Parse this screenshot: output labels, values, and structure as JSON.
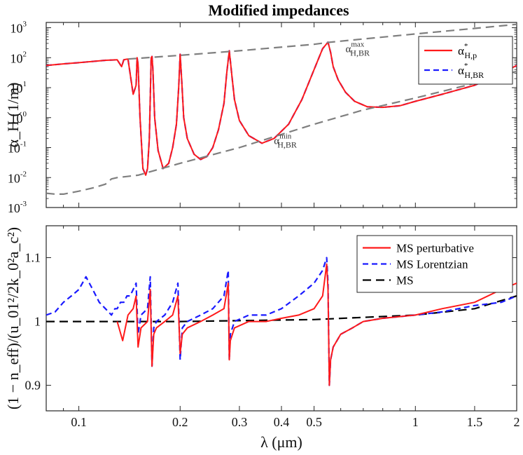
{
  "chart_data": [
    {
      "type": "line",
      "title": "Modified impedances",
      "ylabel": "α_H (1/m)",
      "xscale": "log",
      "yscale": "log",
      "xlim": [
        0.08,
        2
      ],
      "ylim": [
        0.001,
        1500
      ],
      "x_ticks": [],
      "y_ticks": [
        {
          "value": 0.001,
          "base": "10",
          "exp": "-3"
        },
        {
          "value": 0.01,
          "base": "10",
          "exp": "-2"
        },
        {
          "value": 0.1,
          "base": "10",
          "exp": "-1"
        },
        {
          "value": 1,
          "base": "10",
          "exp": "0"
        },
        {
          "value": 10,
          "base": "10",
          "exp": "1"
        },
        {
          "value": 100,
          "base": "10",
          "exp": "2"
        },
        {
          "value": 1000,
          "base": "10",
          "exp": "3"
        }
      ],
      "legend": {
        "position": "top-right",
        "entries": [
          {
            "main": "α",
            "sup": "*",
            "sub": "H,p"
          },
          {
            "main": "α",
            "sup": "*",
            "sub": "H,BR"
          }
        ]
      },
      "annotations": [
        {
          "main": "α",
          "sup": "max",
          "sub": "H,BR",
          "at": [
            0.62,
            150
          ]
        },
        {
          "main": "α",
          "sup": "min",
          "sub": "H,BR",
          "at": [
            0.38,
            0.13
          ]
        }
      ],
      "background_lines": {
        "smooth_x": [
          0.08,
          0.33
        ],
        "smooth_y": [
          100,
          150
        ]
      },
      "series": [
        {
          "name": "α*_H,BR (Lorentzian)",
          "color": "#1a1aff",
          "dash": "8,5",
          "width": 2.2,
          "x": [
            0.08,
            0.09,
            0.1,
            0.11,
            0.12,
            0.13,
            0.134,
            0.136,
            0.138,
            0.14,
            0.145,
            0.148,
            0.149,
            0.15,
            0.152,
            0.155,
            0.158,
            0.16,
            0.162,
            0.164,
            0.165,
            0.166,
            0.168,
            0.172,
            0.178,
            0.185,
            0.19,
            0.195,
            0.198,
            0.2,
            0.202,
            0.205,
            0.21,
            0.22,
            0.23,
            0.24,
            0.25,
            0.26,
            0.27,
            0.275,
            0.28,
            0.285,
            0.29,
            0.3,
            0.32,
            0.35,
            0.38,
            0.42,
            0.46,
            0.5,
            0.53,
            0.55,
            0.56,
            0.57,
            0.59,
            0.62,
            0.66,
            0.72,
            0.8,
            0.9,
            1.0,
            1.2,
            1.5,
            1.8,
            2.0
          ],
          "y": [
            55,
            62,
            68,
            75,
            82,
            85,
            50,
            85,
            88,
            90,
            6,
            12,
            100,
            60,
            1,
            0.02,
            0.012,
            0.02,
            0.2,
            100,
            110,
            40,
            1,
            0.08,
            0.02,
            0.03,
            0.1,
            0.6,
            10,
            130,
            20,
            1,
            0.2,
            0.06,
            0.04,
            0.05,
            0.1,
            0.4,
            3,
            30,
            170,
            25,
            4,
            0.8,
            0.25,
            0.14,
            0.2,
            0.6,
            4,
            40,
            200,
            330,
            150,
            50,
            18,
            7,
            3.5,
            2.3,
            2.2,
            2.5,
            3.5,
            6,
            12,
            30,
            55
          ]
        },
        {
          "name": "α*_H,p (perturbative)",
          "color": "#ff1a1a",
          "dash": "0",
          "width": 2,
          "x": [
            0.08,
            0.09,
            0.1,
            0.11,
            0.12,
            0.13,
            0.134,
            0.136,
            0.138,
            0.14,
            0.145,
            0.148,
            0.149,
            0.15,
            0.152,
            0.155,
            0.158,
            0.16,
            0.162,
            0.164,
            0.165,
            0.166,
            0.168,
            0.172,
            0.178,
            0.185,
            0.19,
            0.195,
            0.198,
            0.2,
            0.202,
            0.205,
            0.21,
            0.22,
            0.23,
            0.24,
            0.25,
            0.26,
            0.27,
            0.275,
            0.28,
            0.285,
            0.29,
            0.3,
            0.32,
            0.35,
            0.38,
            0.42,
            0.46,
            0.5,
            0.53,
            0.55,
            0.56,
            0.57,
            0.59,
            0.62,
            0.66,
            0.72,
            0.8,
            0.9,
            1.0,
            1.2,
            1.5,
            1.8,
            2.0
          ],
          "y": [
            55,
            62,
            68,
            75,
            82,
            85,
            50,
            85,
            88,
            90,
            6,
            12,
            100,
            60,
            1,
            0.02,
            0.012,
            0.02,
            0.2,
            100,
            110,
            40,
            1,
            0.08,
            0.02,
            0.03,
            0.1,
            0.6,
            10,
            130,
            20,
            1,
            0.2,
            0.06,
            0.04,
            0.05,
            0.1,
            0.4,
            3,
            30,
            170,
            25,
            4,
            0.8,
            0.25,
            0.14,
            0.2,
            0.6,
            4,
            40,
            200,
            330,
            150,
            50,
            18,
            7,
            3.5,
            2.3,
            2.2,
            2.5,
            3.5,
            6,
            12,
            30,
            55
          ]
        },
        {
          "name": "α_H,BR max",
          "color": "#7f7f7f",
          "dash": "12,7",
          "width": 2.2,
          "x": [
            0.14,
            0.2,
            0.3,
            0.5,
            0.56,
            1.0,
            1.5,
            2.0
          ],
          "y": [
            90,
            120,
            170,
            280,
            330,
            620,
            950,
            1300
          ]
        },
        {
          "name": "α_H,BR min",
          "color": "#7f7f7f",
          "dash": "12,7",
          "width": 2.2,
          "x": [
            0.08,
            0.085,
            0.09,
            0.1,
            0.11,
            0.12,
            0.125,
            0.13,
            0.15,
            0.2,
            0.3,
            0.5,
            0.7,
            1.0,
            1.5,
            2.0
          ],
          "y": [
            0.003,
            0.0028,
            0.0028,
            0.0035,
            0.0045,
            0.006,
            0.009,
            0.01,
            0.012,
            0.03,
            0.1,
            0.6,
            1.8,
            4.5,
            14,
            35
          ]
        }
      ]
    },
    {
      "type": "line",
      "ylabel": "(1 − n_eff)/(u_01²/2k_0²a_c²)",
      "xlabel": "λ (μm)",
      "xscale": "log",
      "xlim": [
        0.08,
        2
      ],
      "ylim": [
        0.86,
        1.15
      ],
      "x_ticks": [
        {
          "value": 0.1,
          "label": "0.1"
        },
        {
          "value": 0.2,
          "label": "0.2"
        },
        {
          "value": 0.3,
          "label": "0.3"
        },
        {
          "value": 0.4,
          "label": "0.4"
        },
        {
          "value": 0.5,
          "label": "0.5"
        },
        {
          "value": 1,
          "label": "1"
        },
        {
          "value": 1.5,
          "label": "1.5"
        },
        {
          "value": 2,
          "label": "2"
        }
      ],
      "y_ticks": [
        {
          "value": 0.9,
          "label": "0.9"
        },
        {
          "value": 1.0,
          "label": "1"
        },
        {
          "value": 1.1,
          "label": "1.1"
        }
      ],
      "legend": {
        "position": "top-right",
        "entries": [
          "MS perturbative",
          "MS Lorentzian",
          "MS"
        ]
      },
      "series": [
        {
          "name": "MS",
          "color": "#000000",
          "dash": "12,7",
          "width": 2.2,
          "x": [
            0.08,
            0.2,
            0.5,
            1.0,
            1.5,
            2.0
          ],
          "y": [
            1.0,
            1.0,
            1.003,
            1.01,
            1.02,
            1.04
          ]
        },
        {
          "name": "MS Lorentzian",
          "color": "#1a1aff",
          "dash": "8,5",
          "width": 2.2,
          "x": [
            0.08,
            0.085,
            0.09,
            0.095,
            0.1,
            0.105,
            0.11,
            0.115,
            0.12,
            0.125,
            0.128,
            0.13,
            0.133,
            0.136,
            0.139,
            0.142,
            0.145,
            0.148,
            0.15,
            0.153,
            0.16,
            0.163,
            0.165,
            0.167,
            0.17,
            0.18,
            0.19,
            0.197,
            0.2,
            0.203,
            0.21,
            0.23,
            0.25,
            0.27,
            0.278,
            0.28,
            0.282,
            0.29,
            0.32,
            0.36,
            0.4,
            0.45,
            0.5,
            0.53,
            0.545,
            0.55,
            0.555,
            0.56,
            0.57,
            0.6,
            0.65,
            0.7,
            0.8,
            1.0,
            1.2,
            1.5,
            1.8,
            2.0
          ],
          "y": [
            1.01,
            1.015,
            1.03,
            1.04,
            1.05,
            1.07,
            1.05,
            1.03,
            1.02,
            1.01,
            1.02,
            1.02,
            1.03,
            1.03,
            1.04,
            1.04,
            1.05,
            1.06,
            0.98,
            1.01,
            1.02,
            1.07,
            0.93,
            0.99,
            1.0,
            1.01,
            1.03,
            1.06,
            0.94,
            0.99,
            1.0,
            1.01,
            1.02,
            1.04,
            1.08,
            0.94,
            0.98,
            1.0,
            1.01,
            1.01,
            1.02,
            1.04,
            1.06,
            1.08,
            1.1,
            1.06,
            0.9,
            0.94,
            0.96,
            0.98,
            0.99,
            1.0,
            1.005,
            1.01,
            1.015,
            1.025,
            1.03,
            1.04
          ]
        },
        {
          "name": "MS perturbative",
          "color": "#ff1a1a",
          "dash": "0",
          "width": 2,
          "x": [
            0.13,
            0.135,
            0.14,
            0.145,
            0.148,
            0.15,
            0.153,
            0.16,
            0.163,
            0.165,
            0.167,
            0.17,
            0.18,
            0.19,
            0.197,
            0.2,
            0.203,
            0.21,
            0.23,
            0.25,
            0.27,
            0.278,
            0.28,
            0.282,
            0.29,
            0.32,
            0.36,
            0.4,
            0.45,
            0.5,
            0.53,
            0.545,
            0.55,
            0.555,
            0.56,
            0.57,
            0.6,
            0.65,
            0.7,
            0.8,
            1.0,
            1.2,
            1.5,
            1.8,
            2.0
          ],
          "y": [
            1.0,
            0.97,
            1.01,
            1.02,
            1.04,
            0.96,
            0.99,
            1.0,
            1.05,
            0.93,
            0.98,
            0.99,
            1.0,
            1.01,
            1.04,
            0.95,
            0.98,
            0.99,
            1.0,
            1.01,
            1.02,
            1.06,
            0.94,
            0.97,
            0.99,
            1.0,
            1.0,
            1.005,
            1.01,
            1.02,
            1.04,
            1.09,
            1.05,
            0.9,
            0.94,
            0.96,
            0.98,
            0.99,
            1.0,
            1.005,
            1.01,
            1.02,
            1.03,
            1.05,
            1.06
          ]
        }
      ]
    }
  ]
}
